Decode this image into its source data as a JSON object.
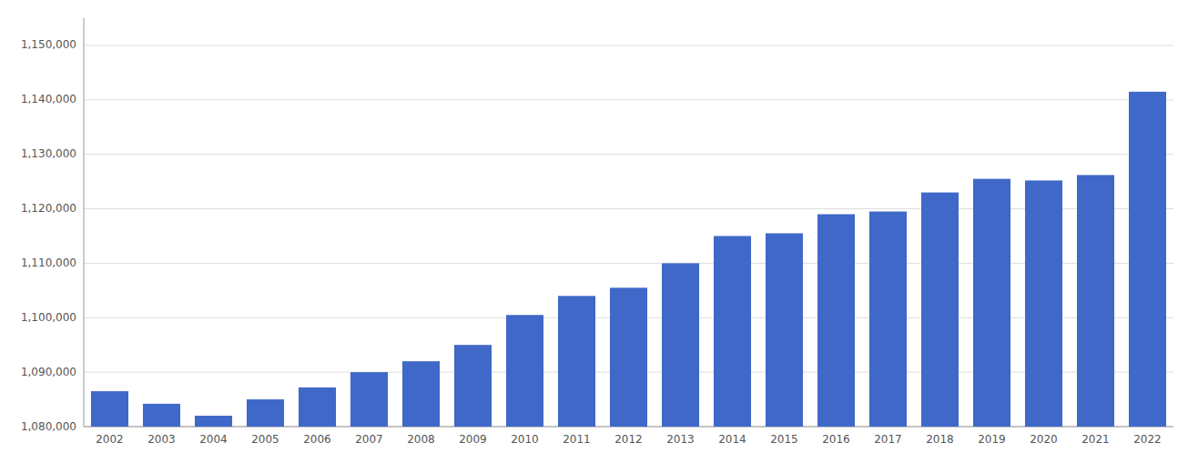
{
  "chart_data": {
    "type": "bar",
    "categories": [
      "2002",
      "2003",
      "2004",
      "2005",
      "2006",
      "2007",
      "2008",
      "2009",
      "2010",
      "2011",
      "2012",
      "2013",
      "2014",
      "2015",
      "2016",
      "2017",
      "2018",
      "2019",
      "2020",
      "2021",
      "2022"
    ],
    "values": [
      1086500,
      1084200,
      1082000,
      1085000,
      1087200,
      1090000,
      1092000,
      1095000,
      1100500,
      1104000,
      1105500,
      1110000,
      1115000,
      1115500,
      1119000,
      1119500,
      1123000,
      1125500,
      1125200,
      1126200,
      1141500
    ],
    "color": "#3f68c8",
    "ylim": [
      1080000,
      1155000
    ],
    "yticks": [
      {
        "value": 1080000,
        "label": "1,080,000"
      },
      {
        "value": 1090000,
        "label": "1,090,000"
      },
      {
        "value": 1100000,
        "label": "1,100,000"
      },
      {
        "value": 1110000,
        "label": "1,110,000"
      },
      {
        "value": 1120000,
        "label": "1,120,000"
      },
      {
        "value": 1130000,
        "label": "1,130,000"
      },
      {
        "value": 1140000,
        "label": "1,140,000"
      },
      {
        "value": 1150000,
        "label": "1,150,000"
      }
    ],
    "grid": true
  }
}
